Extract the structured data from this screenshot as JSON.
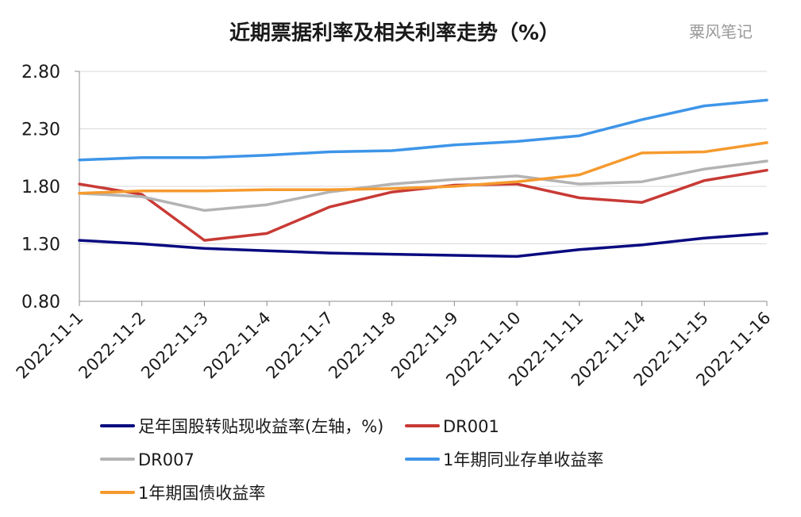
{
  "chart_data": {
    "type": "line",
    "title": "近期票据利率及相关利率走势（%）",
    "watermark": "粟风笔记",
    "x": [
      "2022-11-1",
      "2022-11-2",
      "2022-11-3",
      "2022-11-4",
      "2022-11-7",
      "2022-11-8",
      "2022-11-9",
      "2022-11-10",
      "2022-11-11",
      "2022-11-14",
      "2022-11-15",
      "2022-11-16"
    ],
    "y_ticks": [
      "2.80",
      "2.30",
      "1.80",
      "1.30",
      "0.80"
    ],
    "ylim": [
      0.8,
      2.8
    ],
    "grid": true,
    "legend_position": "bottom",
    "series": [
      {
        "name": "足年国股转贴现收益率(左轴，%)",
        "color": "#0a0a80",
        "values": [
          1.33,
          1.3,
          1.26,
          1.24,
          1.22,
          1.21,
          1.2,
          1.19,
          1.25,
          1.29,
          1.35,
          1.39
        ]
      },
      {
        "name": "DR001",
        "color": "#c83a35",
        "values": [
          1.82,
          1.73,
          1.33,
          1.39,
          1.62,
          1.75,
          1.81,
          1.82,
          1.7,
          1.66,
          1.85,
          1.94
        ]
      },
      {
        "name": "DR007",
        "color": "#b3b3b3",
        "values": [
          1.74,
          1.71,
          1.59,
          1.64,
          1.75,
          1.82,
          1.86,
          1.89,
          1.82,
          1.84,
          1.95,
          2.02
        ]
      },
      {
        "name": "1年期同业存单收益率",
        "color": "#3e95e8",
        "values": [
          2.03,
          2.05,
          2.05,
          2.07,
          2.1,
          2.11,
          2.16,
          2.19,
          2.24,
          2.38,
          2.5,
          2.55
        ]
      },
      {
        "name": "1年期国债收益率",
        "color": "#f59a2e",
        "values": [
          1.74,
          1.76,
          1.76,
          1.77,
          1.77,
          1.78,
          1.8,
          1.84,
          1.9,
          2.09,
          2.1,
          2.18
        ]
      }
    ]
  }
}
